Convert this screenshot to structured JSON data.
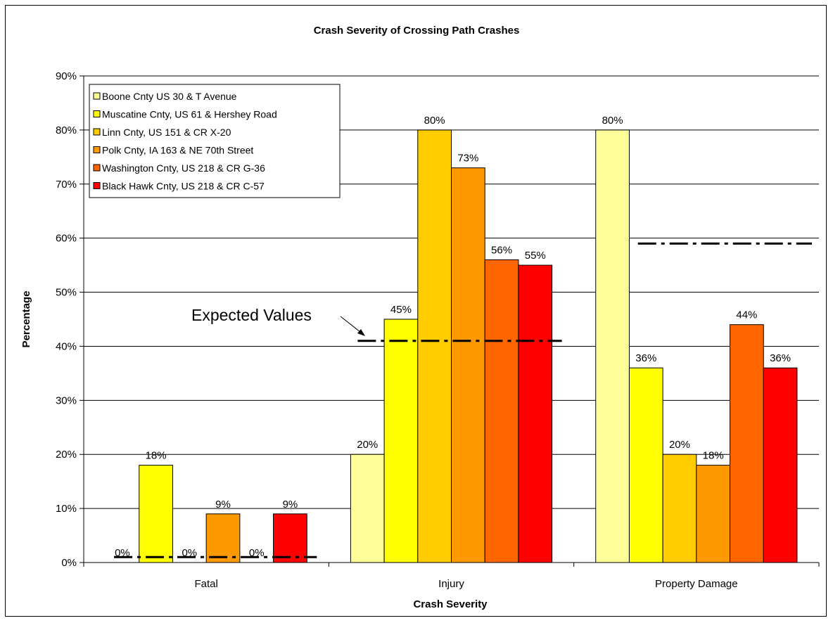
{
  "chart_data": {
    "type": "bar",
    "title": "Crash Severity of Crossing Path Crashes",
    "xlabel": "Crash Severity",
    "ylabel": "Percentage",
    "ylim": [
      0,
      90
    ],
    "yticks": [
      "0%",
      "10%",
      "20%",
      "30%",
      "40%",
      "50%",
      "60%",
      "70%",
      "80%",
      "90%"
    ],
    "categories": [
      "Fatal",
      "Injury",
      "Property Damage"
    ],
    "grid": true,
    "legend_position": "top-left",
    "series": [
      {
        "name": "Boone Cnty US 30 & T Avenue",
        "color": "#FFFF99",
        "values": [
          0,
          20,
          80
        ],
        "labels": [
          "0%",
          "20%",
          "80%"
        ]
      },
      {
        "name": "Muscatine Cnty, US 61 & Hershey Road",
        "color": "#FFFF00",
        "values": [
          18,
          45,
          36
        ],
        "labels": [
          "18%",
          "45%",
          "36%"
        ]
      },
      {
        "name": "Linn Cnty, US 151 & CR X-20",
        "color": "#FFCC00",
        "values": [
          0,
          80,
          20
        ],
        "labels": [
          "0%",
          "80%",
          "20%"
        ]
      },
      {
        "name": "Polk Cnty, IA 163 & NE 70th Street",
        "color": "#FF9900",
        "values": [
          9,
          73,
          18
        ],
        "labels": [
          "9%",
          "73%",
          "18%"
        ]
      },
      {
        "name": "Washington Cnty, US 218 & CR G-36",
        "color": "#FF6600",
        "values": [
          0,
          56,
          44
        ],
        "labels": [
          "0%",
          "56%",
          "44%"
        ]
      },
      {
        "name": "Black Hawk Cnty, US 218 & CR C-57",
        "color": "#FF0000",
        "values": [
          9,
          55,
          36
        ],
        "labels": [
          "9%",
          "55%",
          "36%"
        ]
      }
    ],
    "expected_values": [
      1,
      41,
      59
    ],
    "annotation": "Expected Values"
  }
}
